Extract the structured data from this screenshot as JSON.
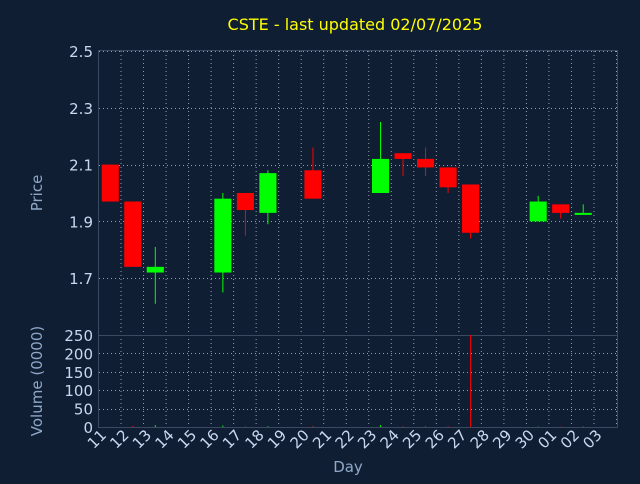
{
  "chart_data": {
    "type": "candlestick",
    "title": "CSTE - last updated 02/07/2025",
    "price_panel": {
      "ylabel": "Price",
      "ylim": [
        1.5,
        2.5
      ],
      "yticks": [
        "1.7",
        "1.9",
        "2.1",
        "2.3",
        "2.5"
      ]
    },
    "volume_panel": {
      "ylabel": "Volume (0000)",
      "ylim": [
        0,
        250
      ],
      "yticks": [
        "0",
        "50",
        "100",
        "150",
        "200",
        "250"
      ]
    },
    "xlabel": "Day",
    "x_tick_labels": [
      "11",
      "12",
      "13",
      "14",
      "15",
      "16",
      "17",
      "18",
      "19",
      "20",
      "21",
      "22",
      "23",
      "24",
      "25",
      "26",
      "27",
      "28",
      "29",
      "30",
      "01",
      "02",
      "03"
    ],
    "grid": true,
    "colors": {
      "background": "#0f1e33",
      "up": "#00ff00",
      "down": "#ff0000",
      "title": "#ffff00",
      "axis_text": "#8fa8c8",
      "tick_text": "#c8d8ee",
      "grid": "#b8c0cc"
    },
    "candles": [
      {
        "day": "11",
        "open": 2.1,
        "high": 2.1,
        "low": 1.97,
        "close": 1.97,
        "volume": 0
      },
      {
        "day": "12",
        "open": 1.97,
        "high": 1.97,
        "low": 1.74,
        "close": 1.74,
        "volume": 3
      },
      {
        "day": "13",
        "open": 1.72,
        "high": 1.81,
        "low": 1.61,
        "close": 1.74,
        "volume": 5
      },
      {
        "day": "16",
        "open": 1.72,
        "high": 2.0,
        "low": 1.65,
        "close": 1.98,
        "volume": 4
      },
      {
        "day": "17",
        "open": 2.0,
        "high": 2.0,
        "low": 1.85,
        "close": 1.94,
        "volume": 2
      },
      {
        "day": "18",
        "open": 1.93,
        "high": 2.08,
        "low": 1.89,
        "close": 2.07,
        "volume": 2
      },
      {
        "day": "20",
        "open": 2.08,
        "high": 2.16,
        "low": 1.98,
        "close": 1.98,
        "volume": 3
      },
      {
        "day": "23",
        "open": 2.0,
        "high": 2.25,
        "low": 2.0,
        "close": 2.12,
        "volume": 5
      },
      {
        "day": "24",
        "open": 2.14,
        "high": 2.14,
        "low": 2.06,
        "close": 2.12,
        "volume": 2
      },
      {
        "day": "25",
        "open": 2.12,
        "high": 2.16,
        "low": 2.06,
        "close": 2.09,
        "volume": 3
      },
      {
        "day": "26",
        "open": 2.09,
        "high": 2.09,
        "low": 2.0,
        "close": 2.02,
        "volume": 2
      },
      {
        "day": "27",
        "open": 2.03,
        "high": 2.03,
        "low": 1.84,
        "close": 1.86,
        "volume": 250
      },
      {
        "day": "30",
        "open": 1.9,
        "high": 1.99,
        "low": 1.9,
        "close": 1.97,
        "volume": 1
      },
      {
        "day": "01",
        "open": 1.96,
        "high": 1.96,
        "low": 1.91,
        "close": 1.93,
        "volume": 1
      },
      {
        "day": "02",
        "open": 1.93,
        "high": 1.96,
        "low": 1.93,
        "close": 1.93,
        "volume": 1
      }
    ]
  }
}
